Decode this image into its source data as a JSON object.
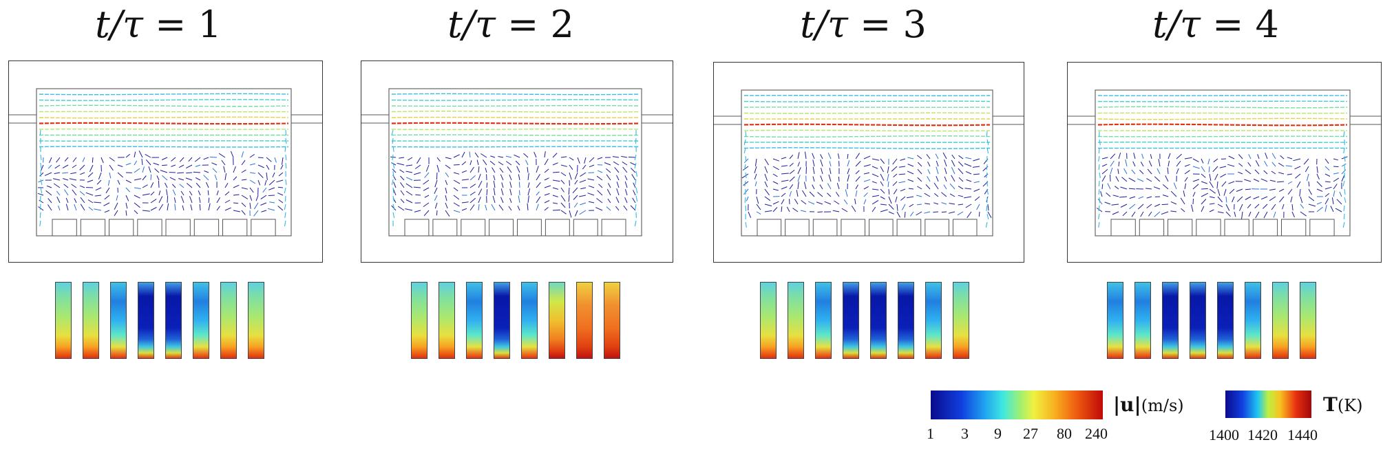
{
  "panels": [
    {
      "title_prefix": "t/τ",
      "title_eq": "=",
      "title_value": "1"
    },
    {
      "title_prefix": "t/τ",
      "title_eq": "=",
      "title_value": "2"
    },
    {
      "title_prefix": "t/τ",
      "title_eq": "=",
      "title_value": "3"
    },
    {
      "title_prefix": "t/τ",
      "title_eq": "=",
      "title_value": "4"
    }
  ],
  "strips": {
    "count": 8,
    "panel_gradients": [
      [
        "mixed",
        "mixed",
        "cool",
        "cold",
        "cold",
        "cool",
        "mixed",
        "mixed"
      ],
      [
        "mixed",
        "mixed",
        "cool",
        "cold",
        "cool",
        "warm",
        "hot",
        "hot"
      ],
      [
        "mixed",
        "mixed",
        "cool",
        "cold",
        "cold",
        "cold",
        "cool",
        "mixed"
      ],
      [
        "cool",
        "cool",
        "cold",
        "cold",
        "cold",
        "cool",
        "mixed",
        "mixed"
      ]
    ]
  },
  "legend": {
    "velocity": {
      "label_bold": "|u|",
      "label_unit": "(m/s)",
      "ticks": [
        "1",
        "3",
        "9",
        "27",
        "80",
        "240"
      ]
    },
    "temperature": {
      "label_bold": "T",
      "label_unit": "(K)",
      "ticks": [
        "1400",
        "1420",
        "1440"
      ]
    }
  },
  "colors": {
    "cold": "#0a1aa0",
    "cool": "#1fc0e8",
    "mid": "#c8e646",
    "warm": "#f0a020",
    "hot": "#d01010"
  }
}
